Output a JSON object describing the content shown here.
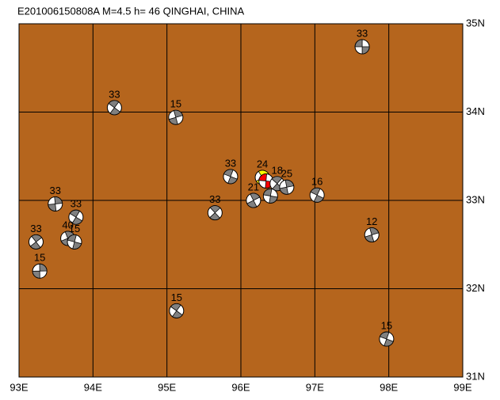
{
  "chart_data": {
    "type": "scatter",
    "title": "E201006150808A M=4.5 h= 46 QINGHAI, CHINA",
    "x": [
      97.64,
      94.29,
      95.12,
      95.86,
      96.29,
      96.34,
      96.49,
      96.62,
      97.03,
      96.17,
      96.4,
      95.65,
      93.49,
      93.77,
      93.66,
      93.75,
      93.23,
      93.28,
      95.13,
      97.77,
      97.97
    ],
    "y": [
      34.74,
      34.05,
      33.94,
      33.27,
      33.26,
      33.22,
      33.19,
      33.15,
      33.06,
      33.0,
      33.05,
      32.86,
      32.96,
      32.81,
      32.57,
      32.53,
      32.53,
      32.2,
      31.75,
      32.61,
      31.43
    ],
    "depths": [
      33,
      33,
      15,
      33,
      24,
      null,
      18,
      25,
      16,
      21,
      null,
      33,
      33,
      33,
      40,
      15,
      33,
      15,
      15,
      12,
      15
    ],
    "colors": [
      "#808080",
      "#808080",
      "#808080",
      "#808080",
      "#ffff00",
      "#ff0000",
      "#808080",
      "#808080",
      "#808080",
      "#808080",
      "#808080",
      "#808080",
      "#808080",
      "#808080",
      "#808080",
      "#808080",
      "#808080",
      "#808080",
      "#808080",
      "#808080",
      "#808080"
    ],
    "background": "#b5651d",
    "grid": true,
    "xlim": [
      93,
      99
    ],
    "ylim": [
      31,
      35
    ],
    "xticks": [
      {
        "value": 93,
        "label": "93E"
      },
      {
        "value": 94,
        "label": "94E"
      },
      {
        "value": 95,
        "label": "95E"
      },
      {
        "value": 96,
        "label": "96E"
      },
      {
        "value": 97,
        "label": "97E"
      },
      {
        "value": 98,
        "label": "98E"
      },
      {
        "value": 99,
        "label": "99E"
      }
    ],
    "yticks": [
      {
        "value": 31,
        "label": "31N"
      },
      {
        "value": 32,
        "label": "32N"
      },
      {
        "value": 33,
        "label": "33N"
      },
      {
        "value": 34,
        "label": "34N"
      },
      {
        "value": 35,
        "label": "35N"
      }
    ]
  }
}
